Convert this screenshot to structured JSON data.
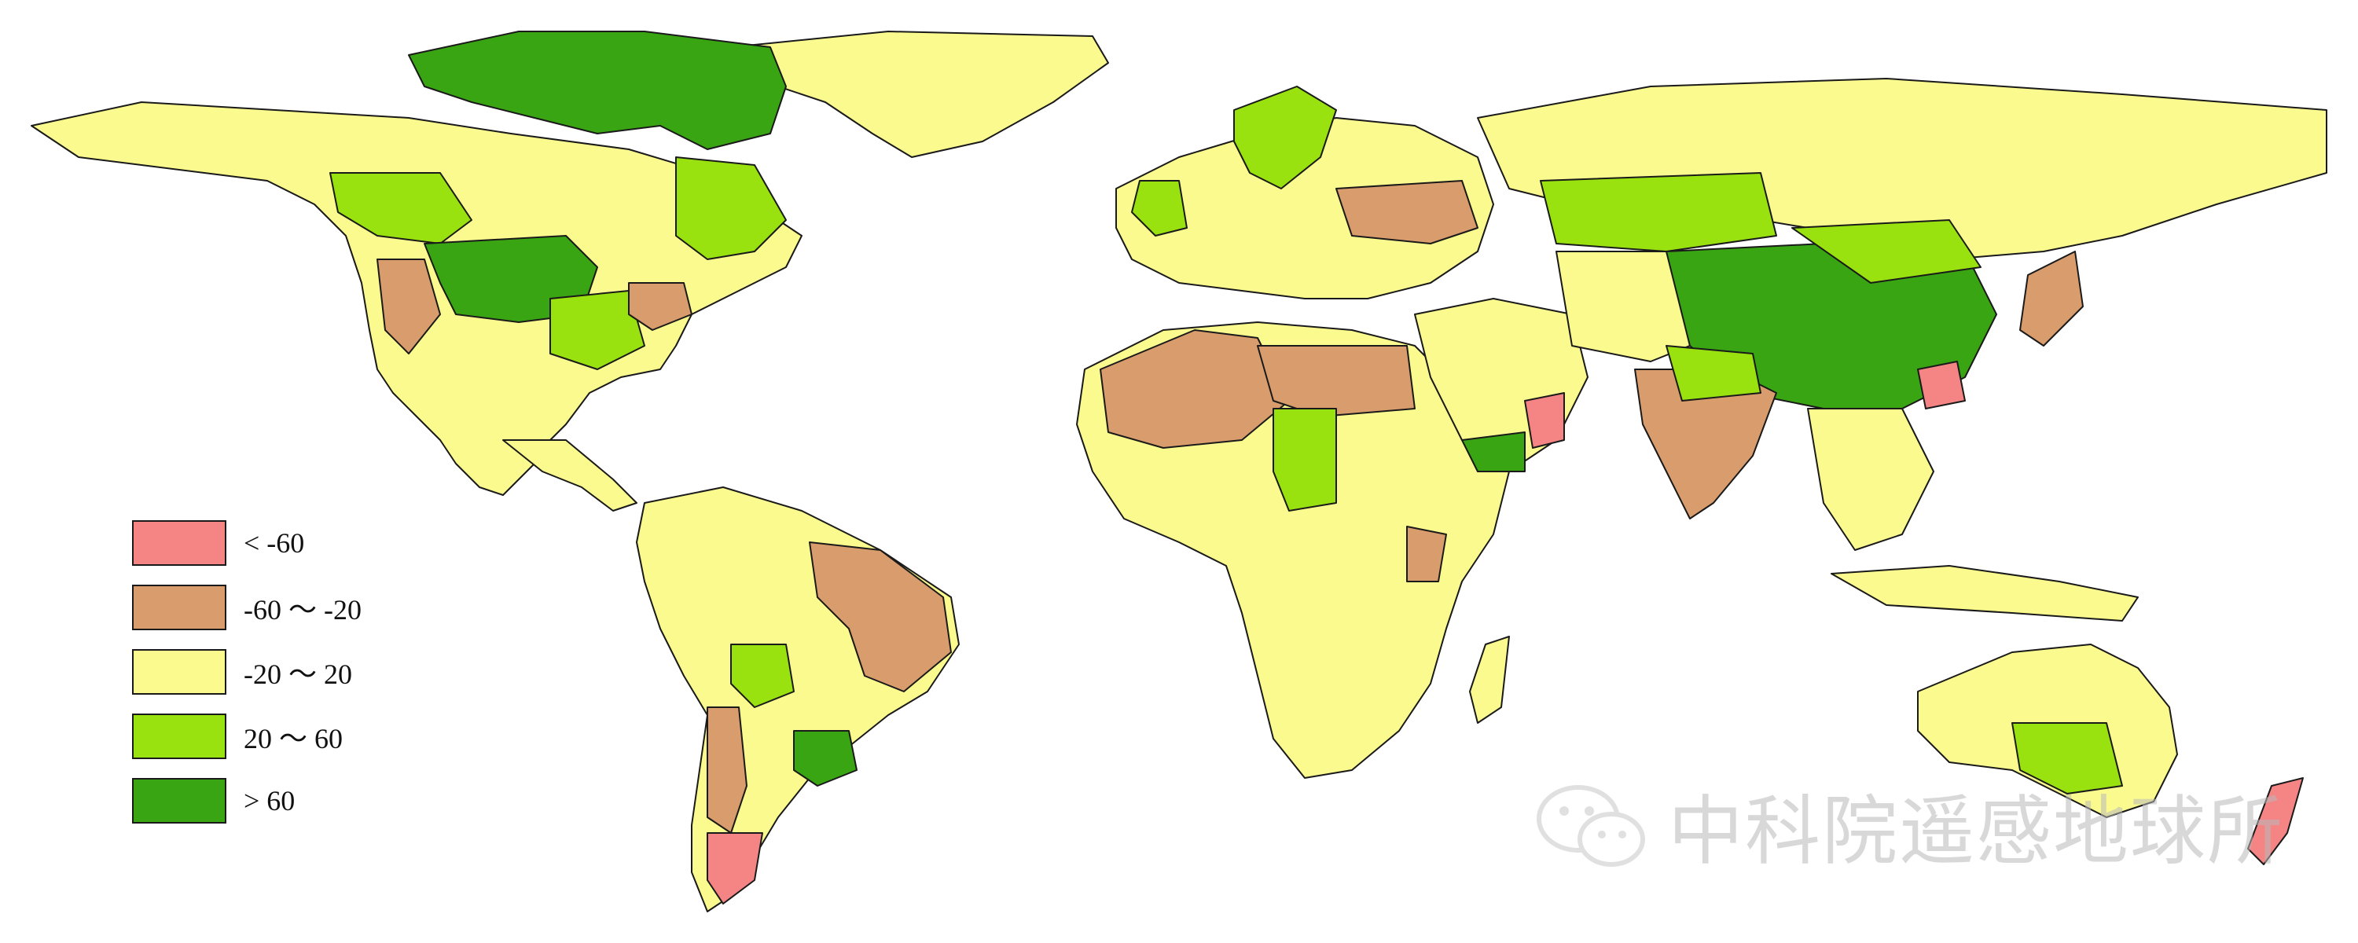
{
  "map": {
    "legend": [
      {
        "label": "< -60",
        "color": "#f58585"
      },
      {
        "label": "-60 ～ -20",
        "color": "#d99c6d"
      },
      {
        "label": "-20 ～ 20",
        "color": "#fbfa8f"
      },
      {
        "label": "20 ～ 60",
        "color": "#99e10f"
      },
      {
        "label": "> 60",
        "color": "#39a512"
      }
    ]
  },
  "watermark": {
    "text": "中科院遥感地球所",
    "icon": "wechat-icon"
  }
}
